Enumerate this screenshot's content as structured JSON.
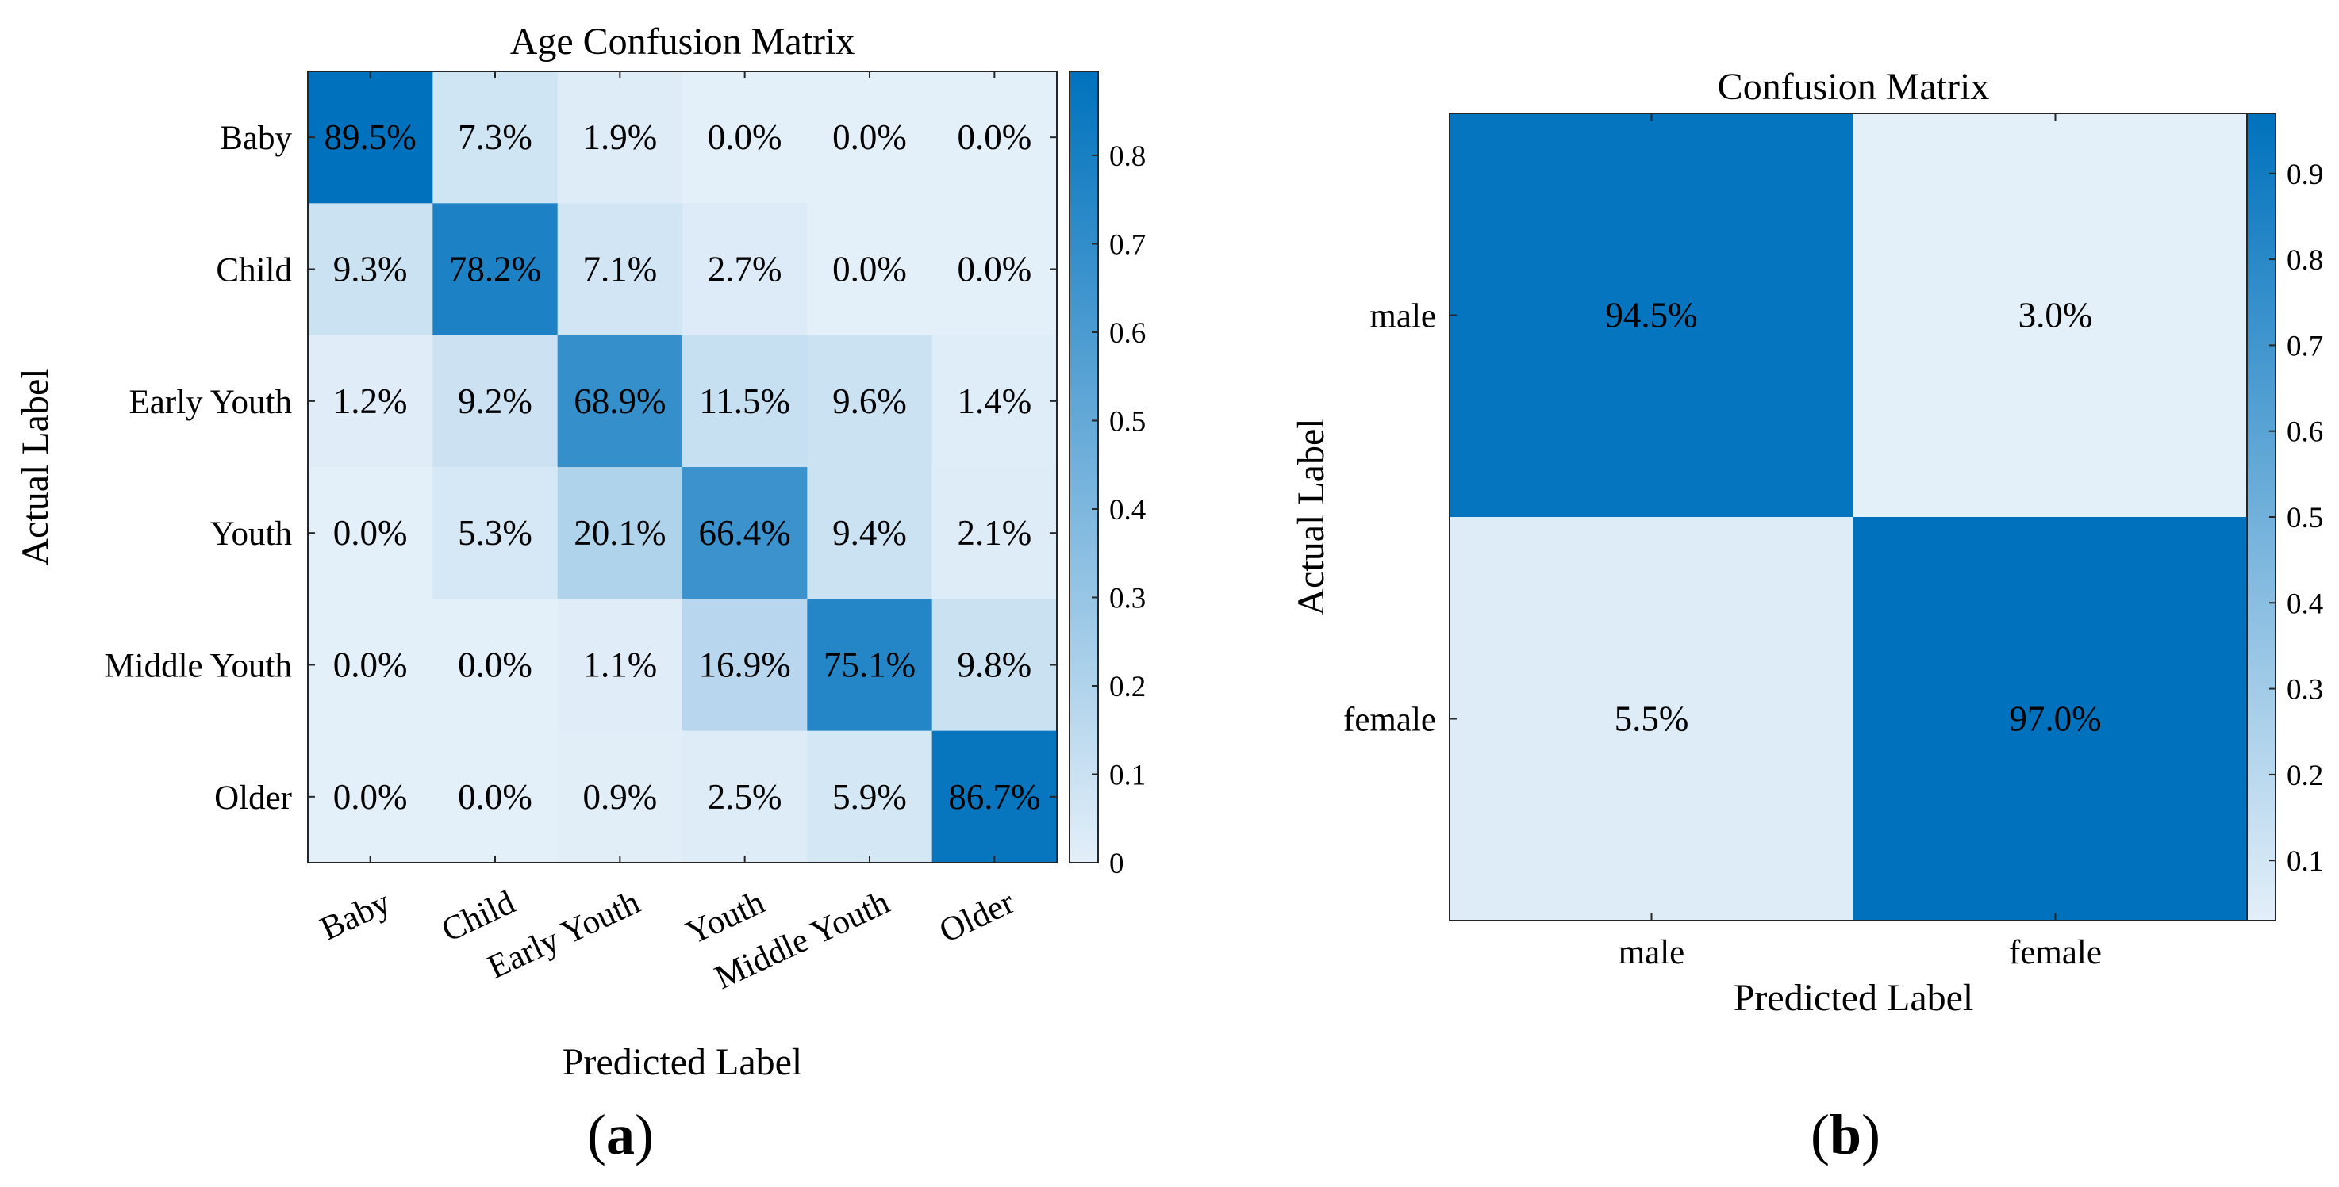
{
  "chart_data": [
    {
      "type": "heatmap",
      "title": "Age Confusion Matrix",
      "xlabel": "Predicted Label",
      "ylabel": "Actual Label",
      "panel_label": "(a)",
      "row_labels": [
        "Baby",
        "Child",
        "Early Youth",
        "Youth",
        "Middle Youth",
        "Older"
      ],
      "col_labels": [
        "Baby",
        "Child",
        "Early Youth",
        "Youth",
        "Middle Youth",
        "Older"
      ],
      "values": [
        [
          89.5,
          7.3,
          1.9,
          0.0,
          0.0,
          0.0
        ],
        [
          9.3,
          78.2,
          7.1,
          2.7,
          0.0,
          0.0
        ],
        [
          1.2,
          9.2,
          68.9,
          11.5,
          9.6,
          1.4
        ],
        [
          0.0,
          5.3,
          20.1,
          66.4,
          9.4,
          2.1
        ],
        [
          0.0,
          0.0,
          1.1,
          16.9,
          75.1,
          9.8
        ],
        [
          0.0,
          0.0,
          0.9,
          2.5,
          5.9,
          86.7
        ]
      ],
      "value_suffix": "%",
      "colorbar": {
        "range": [
          0,
          0.895
        ],
        "ticks": [
          "0",
          "0.1",
          "0.2",
          "0.3",
          "0.4",
          "0.5",
          "0.6",
          "0.7",
          "0.8"
        ]
      }
    },
    {
      "type": "heatmap",
      "title": "Confusion Matrix",
      "xlabel": "Predicted Label",
      "ylabel": "Actual Label",
      "panel_label": "(b)",
      "row_labels": [
        "male",
        "female"
      ],
      "col_labels": [
        "male",
        "female"
      ],
      "values": [
        [
          94.5,
          3.0
        ],
        [
          5.5,
          97.0
        ]
      ],
      "value_suffix": "%",
      "colorbar": {
        "range": [
          0.03,
          0.97
        ],
        "ticks": [
          "0.1",
          "0.2",
          "0.3",
          "0.4",
          "0.5",
          "0.6",
          "0.7",
          "0.8",
          "0.9"
        ]
      }
    }
  ],
  "colors": {
    "low": "#e3eff9",
    "high": "#0072bd",
    "text": "#000000",
    "border": "#262626"
  }
}
